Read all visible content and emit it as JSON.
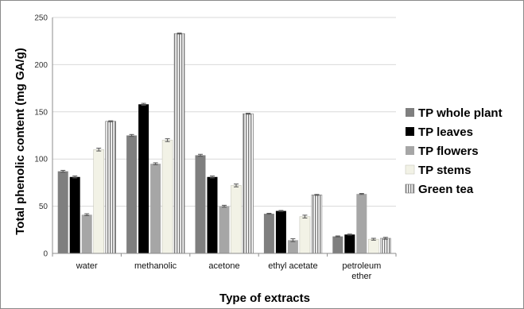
{
  "chart_data": {
    "type": "bar",
    "xlabel": "Type of extracts",
    "ylabel": "Total phenolic content (mg GA/g)",
    "ylim": [
      0,
      250
    ],
    "yticks": [
      0,
      50,
      100,
      150,
      200,
      250
    ],
    "grid": true,
    "legend_position": "right",
    "categories": [
      [
        "water"
      ],
      [
        "methanolic"
      ],
      [
        "acetone"
      ],
      [
        "ethyl  acetate"
      ],
      [
        "petroleum",
        "ether"
      ]
    ],
    "series": [
      {
        "name": "TP whole plant",
        "color": "#7f7f7f",
        "pattern": "solid",
        "values": [
          87,
          125,
          104,
          42,
          18
        ],
        "errors": [
          1,
          1,
          1,
          0.5,
          0.5
        ]
      },
      {
        "name": "TP  leaves",
        "color": "#000000",
        "pattern": "solid",
        "values": [
          81,
          158,
          81,
          45,
          20
        ],
        "errors": [
          1,
          1,
          1,
          0.5,
          0.5
        ]
      },
      {
        "name": "TP  flowers",
        "color": "#a6a6a6",
        "pattern": "solid",
        "values": [
          41,
          95,
          50,
          14,
          63
        ],
        "errors": [
          1,
          1,
          1,
          1.5,
          0.5
        ]
      },
      {
        "name": "TP stems",
        "color": "#f2f2e6",
        "pattern": "solid",
        "values": [
          110,
          120,
          72,
          39,
          15
        ],
        "errors": [
          1.5,
          1.5,
          1.5,
          1.5,
          1
        ]
      },
      {
        "name": "Green tea",
        "color": "#ffffff",
        "pattern": "vstripe",
        "values": [
          140,
          233,
          148,
          62,
          16
        ],
        "errors": [
          0.5,
          0.5,
          0.5,
          0.5,
          1
        ]
      }
    ]
  }
}
